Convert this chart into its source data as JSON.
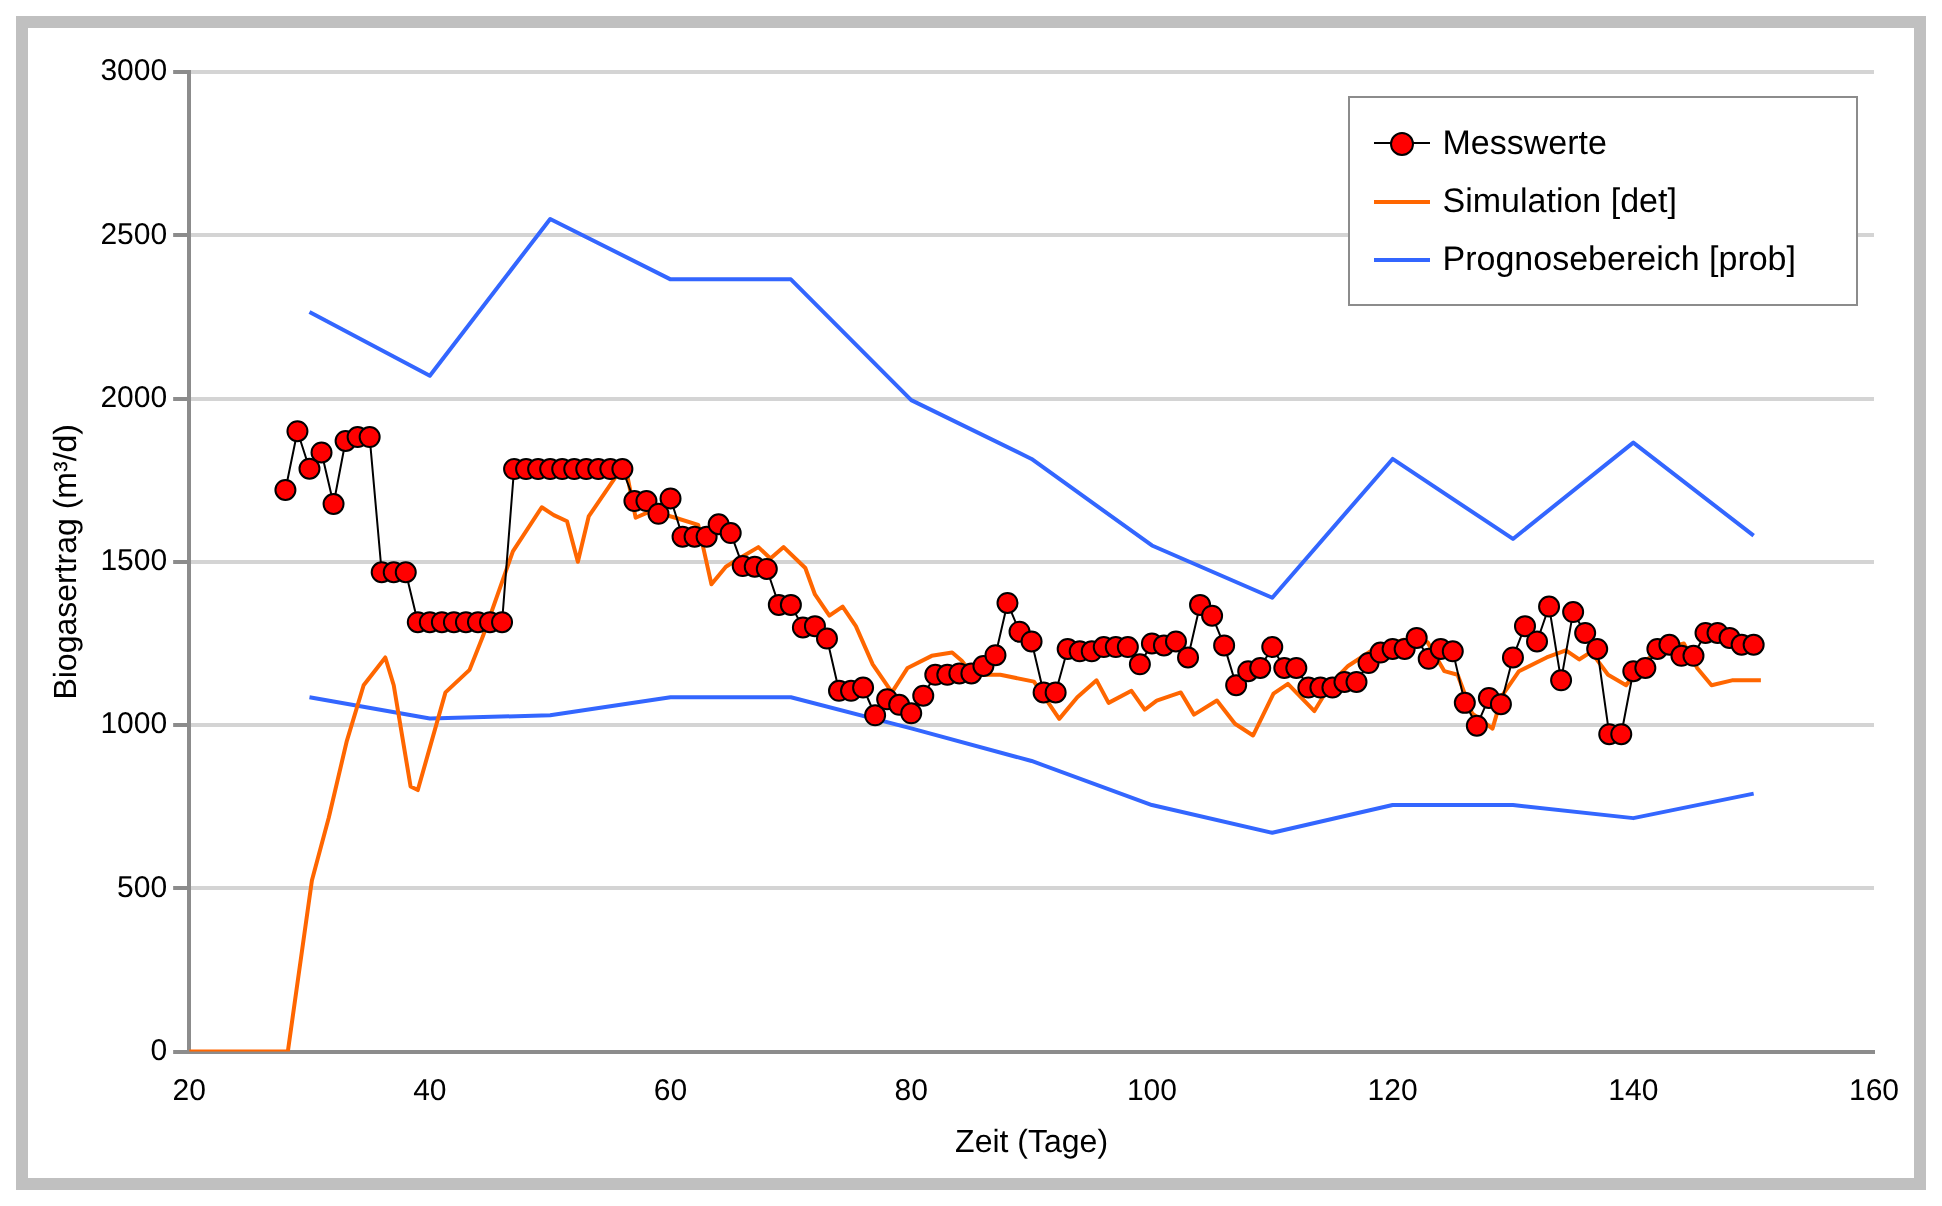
{
  "chart_data": {
    "type": "line",
    "xlabel": "Zeit (Tage)",
    "ylabel": "Biogasertrag (m³/d)",
    "xlim": [
      20,
      160
    ],
    "xticks": [
      20,
      40,
      60,
      80,
      100,
      120,
      140,
      160
    ],
    "ylim": [
      0,
      3000
    ],
    "yticks": [
      0,
      500,
      1000,
      1500,
      2000,
      2500,
      3000
    ],
    "grid": "y",
    "legend": "top right",
    "series": [
      {
        "name": "Messwerte",
        "color": "#ff0000",
        "marker": "circle",
        "x": [
          28,
          29,
          30,
          31,
          32,
          33,
          34,
          35,
          36,
          37,
          38,
          39,
          40,
          41,
          42,
          43,
          44,
          45,
          46,
          47,
          48,
          49,
          50,
          51,
          52,
          53,
          54,
          55,
          56,
          57,
          58,
          59,
          60,
          61,
          62,
          63,
          64,
          65,
          66,
          67,
          68,
          69,
          70,
          71,
          72,
          73,
          74,
          75,
          76,
          77,
          78,
          79,
          80,
          81,
          82,
          83,
          84,
          85,
          86,
          87,
          88,
          89,
          90,
          91,
          92,
          93,
          94,
          95,
          96,
          97,
          98,
          99,
          100,
          101,
          102,
          103,
          104,
          105,
          106,
          107,
          108,
          109,
          110,
          111,
          112,
          113,
          114,
          115,
          116,
          117,
          118,
          119,
          120,
          121,
          122,
          123,
          124,
          125,
          126,
          127,
          128,
          129,
          130,
          131,
          132,
          133,
          134,
          135,
          136,
          137,
          138,
          139,
          140,
          141,
          142,
          143,
          144,
          145,
          146,
          147,
          148,
          149,
          150
        ],
        "values": [
          1720,
          1900,
          1785,
          1835,
          1677,
          1870,
          1882,
          1882,
          1468,
          1468,
          1468,
          1315,
          1315,
          1315,
          1315,
          1315,
          1315,
          1315,
          1315,
          1784,
          1784,
          1784,
          1784,
          1784,
          1784,
          1784,
          1784,
          1784,
          1784,
          1686,
          1686,
          1647,
          1694,
          1577,
          1577,
          1577,
          1615,
          1588,
          1487,
          1485,
          1478,
          1368,
          1368,
          1299,
          1303,
          1265,
          1105,
          1105,
          1115,
          1030,
          1079,
          1062,
          1036,
          1090,
          1154,
          1154,
          1158,
          1158,
          1181,
          1214,
          1374,
          1286,
          1256,
          1100,
          1100,
          1233,
          1226,
          1226,
          1239,
          1239,
          1239,
          1186,
          1250,
          1244,
          1256,
          1207,
          1368,
          1335,
          1244,
          1122,
          1165,
          1175,
          1239,
          1175,
          1175,
          1115,
          1115,
          1115,
          1132,
          1132,
          1190,
          1222,
          1233,
          1233,
          1267,
          1203,
          1233,
          1226,
          1068,
          998,
          1083,
          1064,
          1207,
          1303,
          1256,
          1363,
          1137,
          1346,
          1282,
          1233,
          972,
          972,
          1165,
          1175,
          1233,
          1246,
          1212,
          1212,
          1282,
          1282,
          1267,
          1246,
          1246
        ]
      },
      {
        "name": "Simulation [det]",
        "color": "#ff6600",
        "marker": "none",
        "x": [
          20,
          28.2,
          30.2,
          31.6,
          33.1,
          34.5,
          36.3,
          37,
          38.4,
          39,
          41.3,
          43.3,
          44.4,
          46.9,
          49.3,
          50.3,
          51.4,
          52.3,
          53.2,
          55.5,
          56.3,
          57.1,
          58.4,
          60.4,
          62.3,
          63.4,
          64.6,
          65.7,
          67.3,
          68.3,
          69.4,
          71.2,
          72,
          73.2,
          74.3,
          75.4,
          76.8,
          78.4,
          79.7,
          81.7,
          83.4,
          84.2,
          85.1,
          87.4,
          90.2,
          92.3,
          93.8,
          95.4,
          96.4,
          98.3,
          99.4,
          100.4,
          102.4,
          103.5,
          105.4,
          106.9,
          108.4,
          110.1,
          111.3,
          113.5,
          114.9,
          116.3,
          118.3,
          120.9,
          122.9,
          124.3,
          125.4,
          126.6,
          128.3,
          129.1,
          130.5,
          132.8,
          134.4,
          135.5,
          136.5,
          137.9,
          139.4,
          140.8,
          142.2,
          144.2,
          145.3,
          146.5,
          148.2,
          150.6
        ],
        "values": [
          0,
          0,
          524,
          716,
          951,
          1122,
          1207,
          1122,
          812,
          801,
          1100,
          1169,
          1271,
          1532,
          1667,
          1643,
          1624,
          1500,
          1639,
          1763,
          1784,
          1635,
          1656,
          1635,
          1613,
          1431,
          1485,
          1510,
          1545,
          1510,
          1545,
          1481,
          1400,
          1335,
          1363,
          1303,
          1186,
          1100,
          1175,
          1212,
          1222,
          1197,
          1154,
          1154,
          1133,
          1019,
          1085,
          1137,
          1068,
          1105,
          1047,
          1075,
          1100,
          1032,
          1075,
          1004,
          968,
          1096,
          1126,
          1043,
          1128,
          1181,
          1229,
          1261,
          1254,
          1165,
          1154,
          1036,
          989,
          1090,
          1165,
          1207,
          1229,
          1201,
          1224,
          1154,
          1122,
          1192,
          1229,
          1250,
          1175,
          1122,
          1137,
          1137
        ]
      },
      {
        "name": "Prognosebereich [prob]",
        "color": "#3366ff",
        "marker": "none",
        "x": [
          30,
          40,
          50,
          60,
          70,
          80,
          90,
          100,
          110,
          120,
          130,
          140,
          150
        ],
        "values": [
          2265,
          2070,
          2550,
          2365,
          2365,
          1995,
          1815,
          1550,
          1390,
          1815,
          1570,
          1865,
          1580
        ]
      },
      {
        "color": "#3366ff",
        "marker": "none",
        "x": [
          30,
          40,
          50,
          60,
          70,
          80,
          90,
          100,
          110,
          120,
          130,
          140,
          150
        ],
        "values": [
          1085,
          1020,
          1030,
          1085,
          1085,
          990,
          890,
          755,
          670,
          755,
          755,
          715,
          790
        ]
      }
    ]
  }
}
